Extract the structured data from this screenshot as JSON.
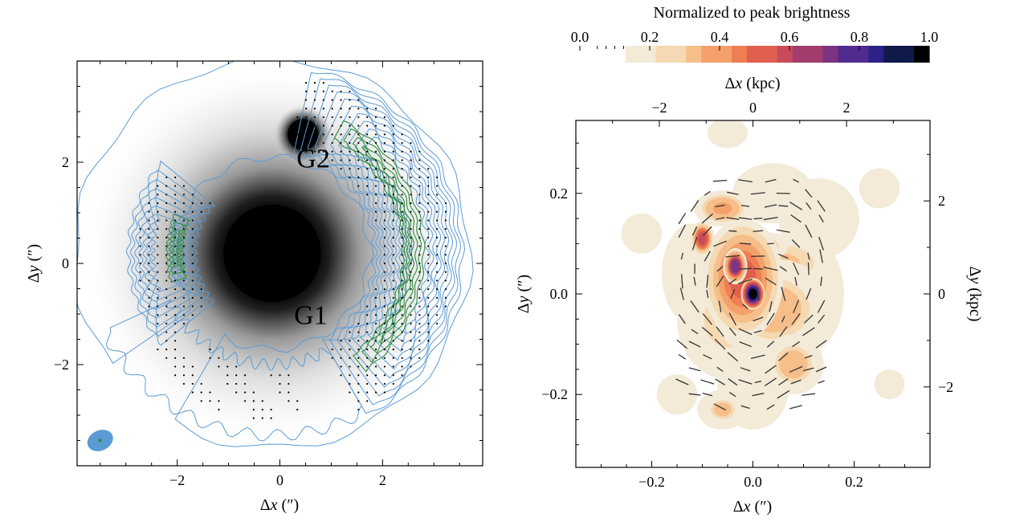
{
  "colors": {
    "background": "#ffffff",
    "axes": "#000000",
    "contour_blue": "#5b9bd5",
    "contour_green": "#2e8b3e",
    "beam_fill": "#5b9bd5",
    "beam_dot": "#2e8b3e",
    "cmap": [
      "#f3ead8",
      "#f5d9b2",
      "#f6bf8a",
      "#f4a06a",
      "#ef7e52",
      "#e0604f",
      "#c84b5c",
      "#a23d6e",
      "#7c3480",
      "#522b90",
      "#2c2288",
      "#101a4a",
      "#000000"
    ]
  },
  "chart_data": [
    {
      "id": "left-panel",
      "type": "image",
      "xlabel": "Δx (″)",
      "ylabel": "Δy (″)",
      "xlim": [
        -3.95,
        3.95
      ],
      "ylim": [
        -4.0,
        4.0
      ],
      "xticks": [
        -2,
        0,
        2
      ],
      "yticks": [
        -2,
        0,
        2
      ],
      "xtick_labels": [
        "−2",
        "0",
        "2"
      ],
      "ytick_labels": [
        "−2",
        "0",
        "2"
      ],
      "annotations": [
        {
          "label": "G2",
          "x": 0.65,
          "y": 1.9
        },
        {
          "label": "G1",
          "x": 0.6,
          "y": -1.2
        }
      ],
      "sources": [
        {
          "name": "G1",
          "x": -0.15,
          "y": 0.2,
          "radius": 0.95
        },
        {
          "name": "G2",
          "x": 0.45,
          "y": 2.55,
          "radius": 0.3
        }
      ],
      "arc_east": {
        "cx": -0.15,
        "cy": 0.2,
        "r_inner": 2.0,
        "r_outer": 3.7,
        "angle_from_deg": -60,
        "angle_to_deg": 78
      },
      "arc_west": {
        "cx": -0.15,
        "cy": 0.2,
        "r_inner": 1.5,
        "r_outer": 2.8,
        "angle_from_deg": 140,
        "angle_to_deg": 220
      },
      "beam": {
        "x": -3.5,
        "y": -3.5,
        "major": 0.26,
        "minor": 0.2
      }
    },
    {
      "id": "right-panel",
      "type": "image",
      "xlabel": "Δx (″)",
      "ylabel": "Δy (″)",
      "top_xlabel": "Δx (kpc)",
      "right_ylabel": "Δy (kpc)",
      "xlim": [
        -0.35,
        0.35
      ],
      "ylim": [
        -0.345,
        0.345
      ],
      "xticks": [
        -0.2,
        0.0,
        0.2
      ],
      "yticks": [
        -0.2,
        0.0,
        0.2
      ],
      "xtick_labels": [
        "−0.2",
        "0.0",
        "0.2"
      ],
      "ytick_labels": [
        "−0.2",
        "0.0",
        "0.2"
      ],
      "top_ticks_kpc": [
        -2,
        0,
        2
      ],
      "top_tick_labels": [
        "−2",
        "0",
        "2"
      ],
      "right_ticks_kpc": [
        -2,
        0,
        2
      ],
      "right_tick_labels": [
        "−2",
        "0",
        "2"
      ],
      "arcsec_per_kpc": 0.0925,
      "blobs": [
        {
          "x": 0.0,
          "y": 0.0,
          "sx": 0.012,
          "sy": 0.016,
          "peak": 1.0
        },
        {
          "x": -0.02,
          "y": 0.03,
          "sx": 0.04,
          "sy": 0.06,
          "peak": 0.52
        },
        {
          "x": -0.035,
          "y": 0.055,
          "sx": 0.012,
          "sy": 0.018,
          "peak": 0.72
        },
        {
          "x": 0.04,
          "y": -0.03,
          "sx": 0.06,
          "sy": 0.05,
          "peak": 0.32
        },
        {
          "x": -0.06,
          "y": 0.17,
          "sx": 0.028,
          "sy": 0.018,
          "peak": 0.38
        },
        {
          "x": -0.1,
          "y": 0.11,
          "sx": 0.012,
          "sy": 0.018,
          "peak": 0.58
        },
        {
          "x": 0.06,
          "y": 0.06,
          "sx": 0.05,
          "sy": 0.03,
          "peak": 0.3
        },
        {
          "x": 0.025,
          "y": 0.095,
          "sx": 0.022,
          "sy": 0.014,
          "peak": 0.34
        },
        {
          "x": 0.08,
          "y": -0.14,
          "sx": 0.03,
          "sy": 0.03,
          "peak": 0.32
        },
        {
          "x": -0.06,
          "y": -0.23,
          "sx": 0.025,
          "sy": 0.02,
          "peak": 0.28
        },
        {
          "x": -0.05,
          "y": -0.05,
          "sx": 0.05,
          "sy": 0.06,
          "peak": 0.26
        },
        {
          "x": 0.1,
          "y": 0.0,
          "sx": 0.04,
          "sy": 0.06,
          "peak": 0.2
        },
        {
          "x": 0.0,
          "y": -0.19,
          "sx": 0.035,
          "sy": 0.04,
          "peak": 0.18
        },
        {
          "x": -0.12,
          "y": 0.04,
          "sx": 0.03,
          "sy": 0.05,
          "peak": 0.12
        },
        {
          "x": 0.04,
          "y": 0.2,
          "sx": 0.04,
          "sy": 0.03,
          "peak": 0.12
        },
        {
          "x": -0.15,
          "y": -0.2,
          "sx": 0.02,
          "sy": 0.02,
          "peak": 0.1
        },
        {
          "x": 0.13,
          "y": 0.15,
          "sx": 0.04,
          "sy": 0.04,
          "peak": 0.1
        },
        {
          "x": -0.22,
          "y": 0.12,
          "sx": 0.02,
          "sy": 0.02,
          "peak": 0.1
        },
        {
          "x": 0.25,
          "y": 0.21,
          "sx": 0.02,
          "sy": 0.02,
          "peak": 0.1
        },
        {
          "x": -0.05,
          "y": 0.32,
          "sx": 0.02,
          "sy": 0.015,
          "peak": 0.1
        },
        {
          "x": 0.27,
          "y": -0.18,
          "sx": 0.015,
          "sy": 0.015,
          "peak": 0.1
        }
      ]
    }
  ],
  "colorbar": {
    "title": "Normalized to peak brightness",
    "vmin": 0.0,
    "vmax": 1.0,
    "ticks": [
      0.0,
      0.2,
      0.4,
      0.6,
      0.8,
      1.0
    ],
    "tick_labels": [
      "0.0",
      "0.2",
      "0.4",
      "0.6",
      "0.8",
      "1.0"
    ],
    "start_fraction": 0.13
  }
}
